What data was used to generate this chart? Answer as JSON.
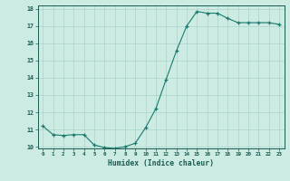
{
  "x": [
    0,
    1,
    2,
    3,
    4,
    5,
    6,
    7,
    8,
    9,
    10,
    11,
    12,
    13,
    14,
    15,
    16,
    17,
    18,
    19,
    20,
    21,
    22,
    23
  ],
  "y": [
    11.2,
    10.7,
    10.65,
    10.7,
    10.7,
    10.1,
    9.95,
    9.9,
    10.0,
    10.2,
    11.1,
    12.2,
    13.9,
    15.55,
    17.0,
    17.85,
    17.75,
    17.75,
    17.45,
    17.2,
    17.2,
    17.2,
    17.2,
    17.1
  ],
  "xlabel": "Humidex (Indice chaleur)",
  "line_color": "#1a7a6e",
  "bg_color": "#ccebe3",
  "grid_color": "#aad4cc",
  "tick_color": "#1a5a50",
  "ylim": [
    10,
    18
  ],
  "xlim": [
    -0.5,
    23.5
  ],
  "yticks": [
    10,
    11,
    12,
    13,
    14,
    15,
    16,
    17,
    18
  ],
  "xticks": [
    0,
    1,
    2,
    3,
    4,
    5,
    6,
    7,
    8,
    9,
    10,
    11,
    12,
    13,
    14,
    15,
    16,
    17,
    18,
    19,
    20,
    21,
    22,
    23
  ]
}
